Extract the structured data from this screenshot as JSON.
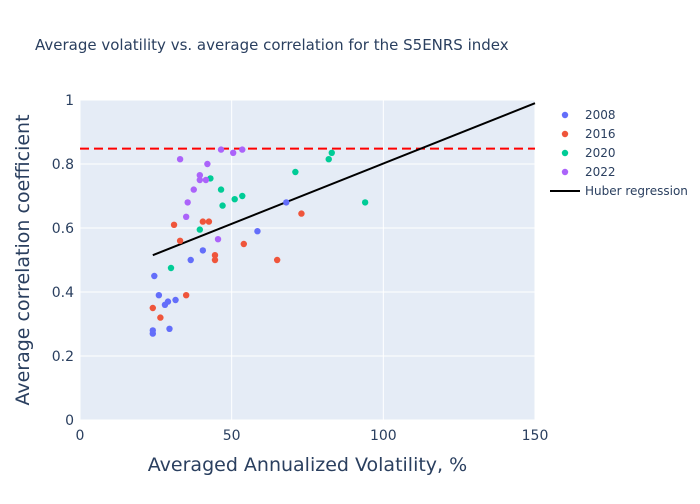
{
  "chart_data": {
    "type": "scatter",
    "title": "Average volatility vs. average correlation for the S5ENRS index",
    "xlabel": "Averaged Annualized Volatility, %",
    "ylabel": "Average correlation coefficient",
    "xlim": [
      0,
      150
    ],
    "ylim": [
      0,
      1
    ],
    "x_ticks": [
      0,
      50,
      100,
      150
    ],
    "y_ticks": [
      0,
      0.2,
      0.4,
      0.6,
      0.8,
      1
    ],
    "y_tick_labels": [
      "0",
      "0.2",
      "0.4",
      "0.6",
      "0.8",
      "1"
    ],
    "grid": true,
    "legend_position": "right",
    "series": [
      {
        "name": "2008",
        "color": "#636efa",
        "points": [
          [
            24,
            0.27
          ],
          [
            24,
            0.28
          ],
          [
            24.5,
            0.45
          ],
          [
            26,
            0.39
          ],
          [
            28,
            0.36
          ],
          [
            29,
            0.37
          ],
          [
            29.5,
            0.285
          ],
          [
            31.5,
            0.375
          ],
          [
            36.5,
            0.5
          ],
          [
            40.5,
            0.53
          ],
          [
            58.5,
            0.59
          ],
          [
            68,
            0.68
          ]
        ]
      },
      {
        "name": "2016",
        "color": "#EF553B",
        "points": [
          [
            24,
            0.35
          ],
          [
            26.5,
            0.32
          ],
          [
            31,
            0.61
          ],
          [
            33,
            0.56
          ],
          [
            35,
            0.39
          ],
          [
            40.5,
            0.62
          ],
          [
            42.5,
            0.62
          ],
          [
            44.5,
            0.515
          ],
          [
            44.5,
            0.5
          ],
          [
            54,
            0.55
          ],
          [
            65,
            0.5
          ],
          [
            73,
            0.645
          ]
        ]
      },
      {
        "name": "2020",
        "color": "#00cc96",
        "points": [
          [
            30,
            0.475
          ],
          [
            39.5,
            0.595
          ],
          [
            43,
            0.755
          ],
          [
            46.5,
            0.72
          ],
          [
            47,
            0.67
          ],
          [
            51,
            0.69
          ],
          [
            53.5,
            0.7
          ],
          [
            71,
            0.775
          ],
          [
            82,
            0.815
          ],
          [
            83,
            0.835
          ],
          [
            94,
            0.68
          ]
        ]
      },
      {
        "name": "2022",
        "color": "#ab63fa",
        "points": [
          [
            33,
            0.815
          ],
          [
            35,
            0.635
          ],
          [
            35.5,
            0.68
          ],
          [
            37.5,
            0.72
          ],
          [
            39.5,
            0.765
          ],
          [
            39.5,
            0.75
          ],
          [
            41.5,
            0.75
          ],
          [
            42,
            0.8
          ],
          [
            45.5,
            0.565
          ],
          [
            46.5,
            0.845
          ],
          [
            50.5,
            0.835
          ],
          [
            53.5,
            0.845
          ]
        ]
      }
    ],
    "regression": {
      "name": "Huber regression",
      "color": "#000000",
      "x": [
        24,
        150
      ],
      "y": [
        0.515,
        0.99
      ]
    },
    "reference_line": {
      "y": 0.848,
      "color": "#ff0000",
      "style": "dashed"
    }
  }
}
